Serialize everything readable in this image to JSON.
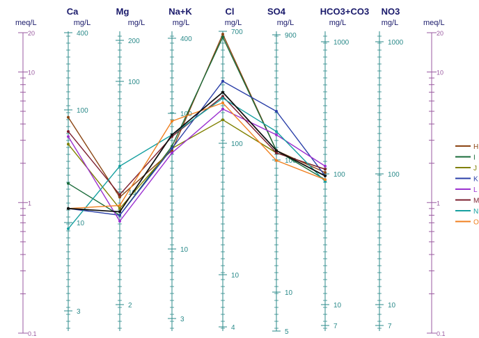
{
  "chart_data": {
    "type": "line",
    "title": "",
    "meq_scale": {
      "unit": "meq/L",
      "range": [
        0.1,
        20
      ],
      "scale": "log",
      "ticks": [
        "20",
        "10",
        "1",
        "0.1"
      ]
    },
    "axes": [
      {
        "name": "Ca",
        "unit": "mg/L",
        "ticks": [
          "400",
          "100",
          "10",
          "3"
        ]
      },
      {
        "name": "Mg",
        "unit": "mg/L",
        "ticks": [
          "200",
          "100",
          "10",
          "2"
        ]
      },
      {
        "name": "Na+K",
        "unit": "mg/L",
        "ticks": [
          "400",
          "100",
          "10",
          "3"
        ]
      },
      {
        "name": "Cl",
        "unit": "mg/L",
        "ticks": [
          "700",
          "100",
          "10",
          "4"
        ]
      },
      {
        "name": "SO4",
        "unit": "mg/L",
        "ticks": [
          "900",
          "100",
          "10",
          "5"
        ]
      },
      {
        "name": "HCO3+CO3",
        "unit": "mg/L",
        "ticks": [
          "1000",
          "100",
          "10",
          "7"
        ]
      },
      {
        "name": "NO3",
        "unit": "mg/L",
        "ticks": [
          "1000",
          "100",
          "10",
          "7"
        ]
      }
    ],
    "categories": [
      "Ca",
      "Mg",
      "Na+K",
      "Cl",
      "SO4",
      "HCO3+CO3"
    ],
    "series": [
      {
        "name": "H",
        "color": "#8b4513",
        "values": [
          4.5,
          1.1,
          2.5,
          19.5,
          2.5,
          1.7
        ]
      },
      {
        "name": "I",
        "color": "#1a6b3a",
        "values": [
          1.4,
          0.8,
          2.7,
          18.5,
          2.5,
          1.5
        ]
      },
      {
        "name": "J",
        "color": "#808000",
        "values": [
          2.8,
          0.9,
          2.6,
          4.3,
          2.4,
          1.8
        ]
      },
      {
        "name": "K",
        "color": "#2a3fa8",
        "values": [
          0.9,
          0.8,
          2.6,
          8.5,
          5.0,
          1.6
        ]
      },
      {
        "name": "L",
        "color": "#9b30d0",
        "values": [
          3.2,
          0.72,
          2.4,
          5.2,
          3.3,
          1.9
        ]
      },
      {
        "name": "M",
        "color": "#7b1f2f",
        "values": [
          3.5,
          1.15,
          3.2,
          6.5,
          2.4,
          1.8
        ]
      },
      {
        "name": "N",
        "color": "#16a0a0",
        "values": [
          0.63,
          1.9,
          3.3,
          6.3,
          3.5,
          1.45
        ]
      },
      {
        "name": "O",
        "color": "#f08020",
        "values": [
          0.9,
          0.95,
          4.2,
          5.8,
          2.1,
          1.5
        ]
      },
      {
        "name": "",
        "color": "#111111",
        "values": [
          0.9,
          0.85,
          3.3,
          7.0,
          2.5,
          1.6
        ]
      }
    ],
    "legend_position": "right"
  }
}
